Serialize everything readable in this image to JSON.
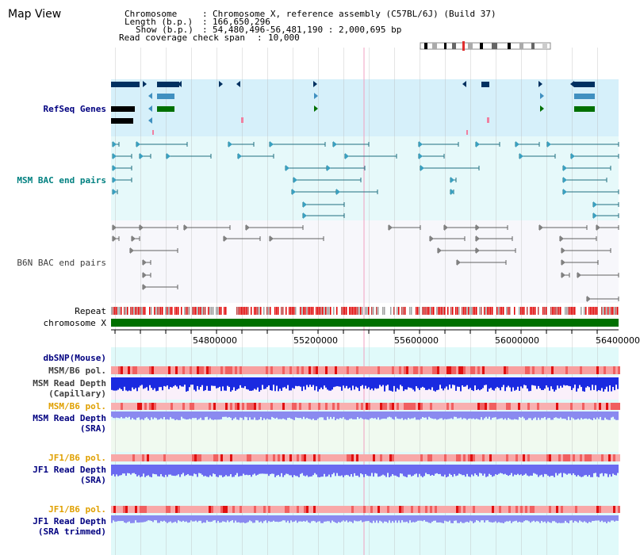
{
  "map_view": {
    "title": "Map View"
  },
  "info": {
    "chromosome_key": "Chromosome",
    "chromosome_value": "Chromosome X, reference assembly (C57BL/6J) (Build 37)",
    "length_key": "Length (b.p.)",
    "length_value": "166,650,296",
    "show_key": "Show (b.p.)",
    "show_value": "54,480,496-56,481,190 : 2,000,695 bp",
    "coverage_key": "Read coverage check span",
    "coverage_value": "10,000"
  },
  "tracks": {
    "refseq": "RefSeq Genes",
    "msm_bac": "MSM BAC end pairs",
    "b6n_bac": "B6N BAC end pairs",
    "repeat": "Repeat",
    "chromosome": "chromosome X",
    "dbsnp": "dbSNP(Mouse)",
    "msm_pol": "MSM/B6 pol.",
    "msm_depth_cap_1": "MSM Read Depth",
    "msm_depth_cap_2": "(Capillary)",
    "msm_pol2": "MSM/B6 pol.",
    "msm_depth_sra_1": "MSM Read Depth",
    "msm_depth_sra_2": "(SRA)",
    "jf1_pol": "JF1/B6 pol.",
    "jf1_depth_1": "JF1 Read Depth",
    "jf1_depth_2": "(SRA)",
    "jf1_pol2": "JF1/B6 pol.",
    "jf1_trim_1": "JF1 Read Depth",
    "jf1_trim_2": "(SRA trimmed)"
  },
  "axis": {
    "ticks": [
      "54800000",
      "55200000",
      "55600000",
      "56000000",
      "56400000"
    ]
  },
  "colors": {
    "refseq_bg": "#d6f0fa",
    "msm_bac_bg": "#e6f9fa",
    "b6n_bac_bg": "#f7f7fb",
    "chromosome_bar": "#007000",
    "label_blue": "#000080",
    "label_orange": "#e0a000",
    "msm_bac_label": "#008080",
    "depth_blue": "#2030e0",
    "depth_light": "#8080f0"
  }
}
